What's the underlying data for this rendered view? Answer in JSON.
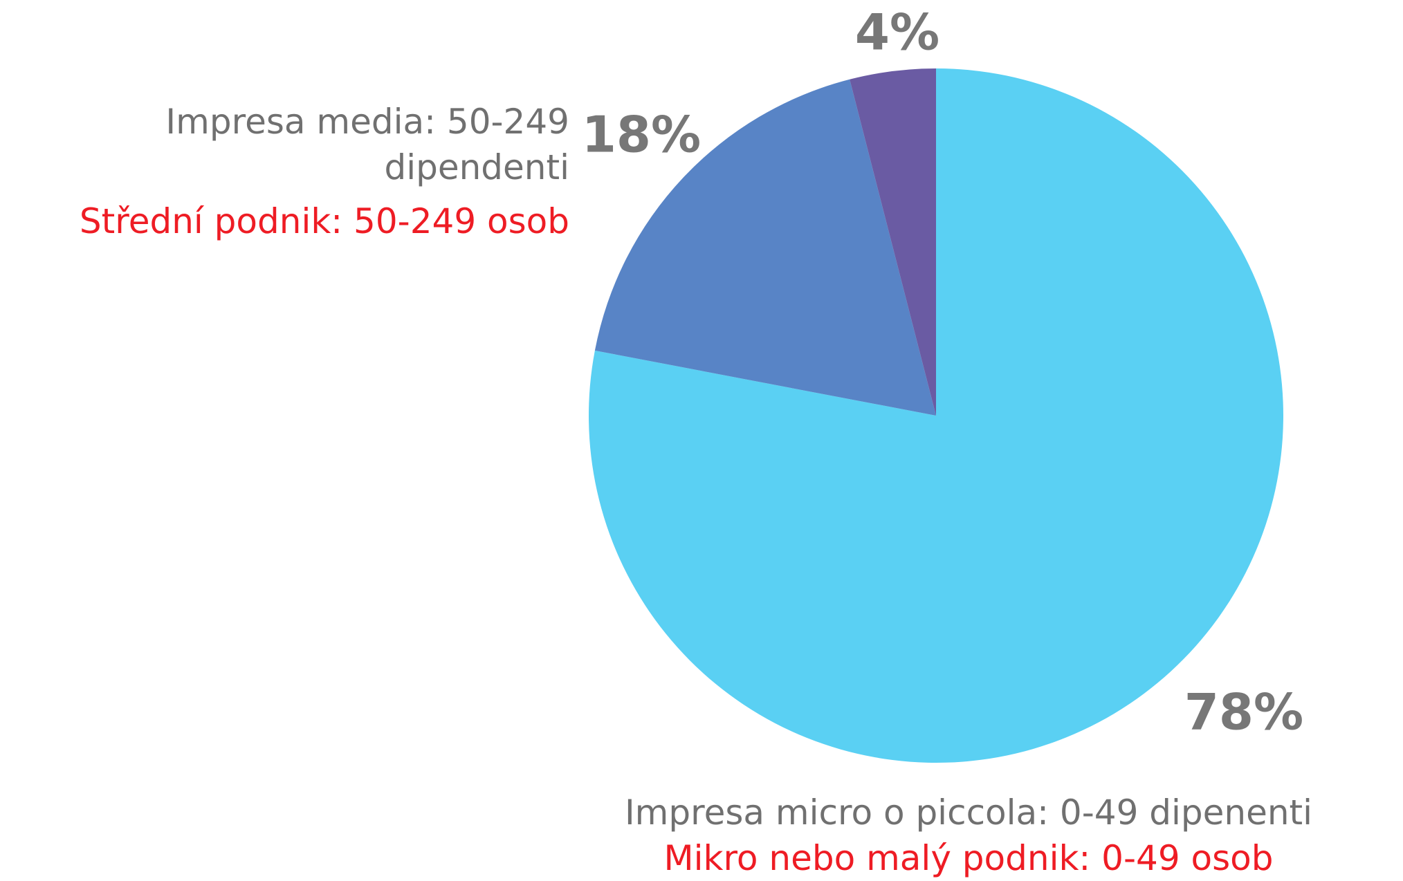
{
  "chart_data": {
    "type": "pie",
    "categories": [
      "Impresa micro o piccola: 0-49 dipenenti",
      "Impresa media: 50-249 dipendenti",
      null
    ],
    "categories_translated": [
      "Mikro nebo malý podnik: 0-49 osob",
      "Střední podnik: 50-249 osob",
      null
    ],
    "values": [
      78,
      18,
      4
    ],
    "value_labels": [
      "78%",
      "18%",
      "4%"
    ],
    "colors": [
      "#5ad0f3",
      "#5884c6",
      "#6a5ba3"
    ]
  }
}
